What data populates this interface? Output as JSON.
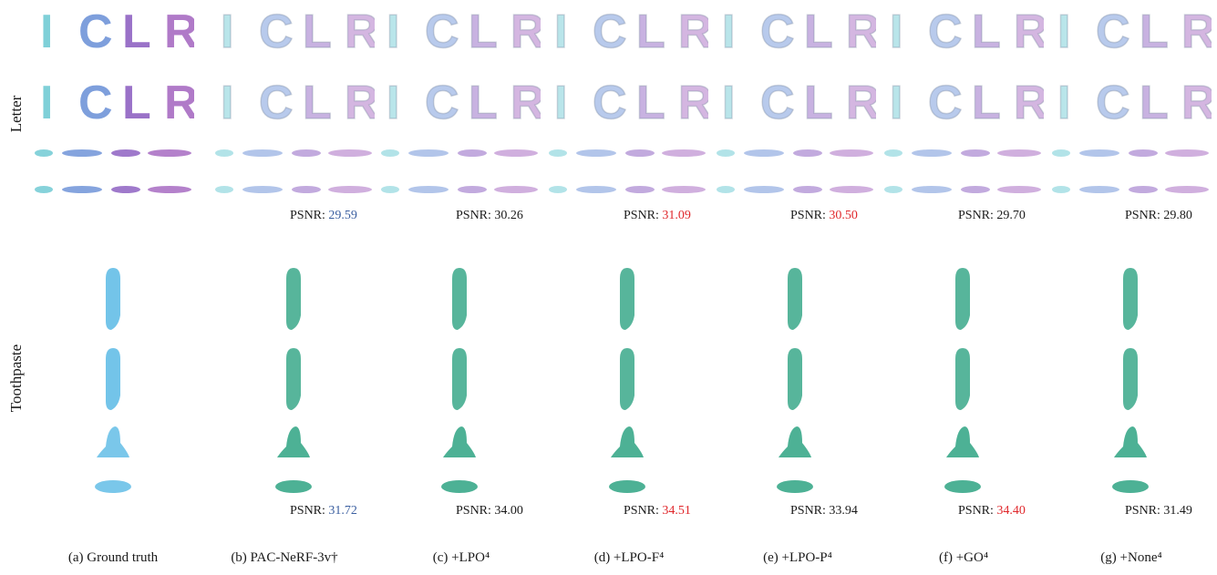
{
  "rows": [
    {
      "label": "Letter",
      "psnr_label": "PSNR: ",
      "psnr": [
        {
          "value": "29.59",
          "color": "blue"
        },
        {
          "value": "30.26",
          "color": "black"
        },
        {
          "value": "31.09",
          "color": "red"
        },
        {
          "value": "30.50",
          "color": "red"
        },
        {
          "value": "29.70",
          "color": "black"
        },
        {
          "value": "29.80",
          "color": "black"
        }
      ]
    },
    {
      "label": "Toothpaste",
      "psnr_label": "PSNR: ",
      "psnr": [
        {
          "value": "31.72",
          "color": "blue"
        },
        {
          "value": "34.00",
          "color": "black"
        },
        {
          "value": "34.51",
          "color": "red"
        },
        {
          "value": "33.94",
          "color": "black"
        },
        {
          "value": "34.40",
          "color": "red"
        },
        {
          "value": "31.49",
          "color": "black"
        }
      ]
    }
  ],
  "captions": [
    "(a) Ground truth",
    "(b) PAC-NeRF-3v†",
    "(c) +LPO⁴",
    "(d) +LPO-F⁴",
    "(e) +LPO-P⁴",
    "(f) +GO⁴",
    "(g) +None⁴"
  ],
  "letters": [
    "I",
    "C",
    "L",
    "R"
  ],
  "colors": {
    "psnr_blue": "#3b5fa0",
    "psnr_red": "#e0282c",
    "letter_teal": "#7fd0d8",
    "letter_blue": "#7e9fdc",
    "letter_purple": "#9a72c8",
    "letter_magenta": "#b07ac8",
    "toothpaste_gt": "#6bc1e8",
    "toothpaste_green": "#3aa88a"
  }
}
